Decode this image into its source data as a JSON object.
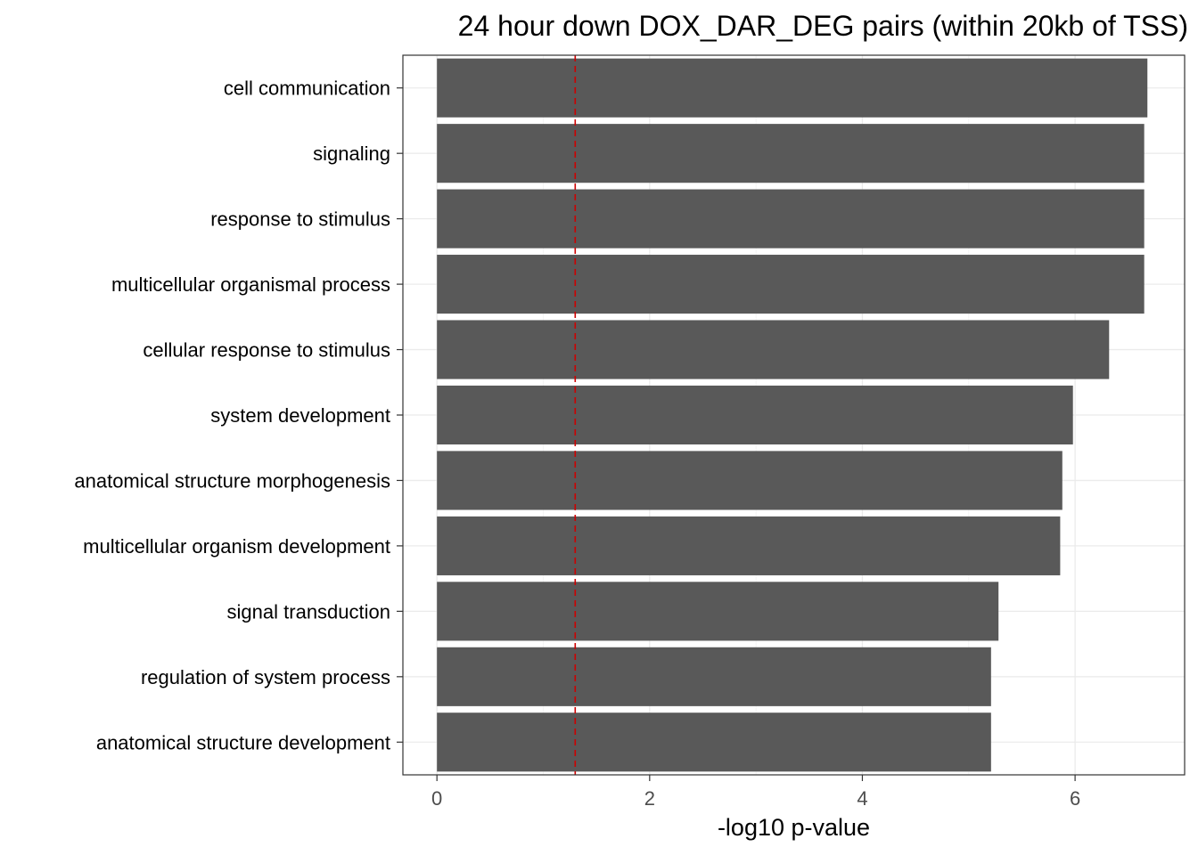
{
  "chart_data": {
    "type": "bar",
    "orientation": "horizontal",
    "title": "24 hour down DOX_DAR_DEG pairs (within 20kb of TSS)",
    "xlabel": "-log10 p-value",
    "ylabel": "",
    "categories": [
      "cell communication",
      "signaling",
      "response to stimulus",
      "multicellular organismal process",
      "cellular response to stimulus",
      "system development",
      "anatomical structure morphogenesis",
      "multicellular organism development",
      "signal transduction",
      "regulation of system process",
      "anatomical structure development"
    ],
    "values": [
      6.68,
      6.65,
      6.65,
      6.65,
      6.32,
      5.98,
      5.88,
      5.86,
      5.28,
      5.21,
      5.21
    ],
    "xlim": [
      -0.32,
      7.03
    ],
    "xticks": [
      0,
      2,
      4,
      6
    ],
    "reference_line": {
      "x": 1.3,
      "style": "dashed",
      "color": "#cc0000"
    },
    "bar_color": "#595959",
    "grid": true,
    "legend": "none",
    "theme": "bw"
  }
}
